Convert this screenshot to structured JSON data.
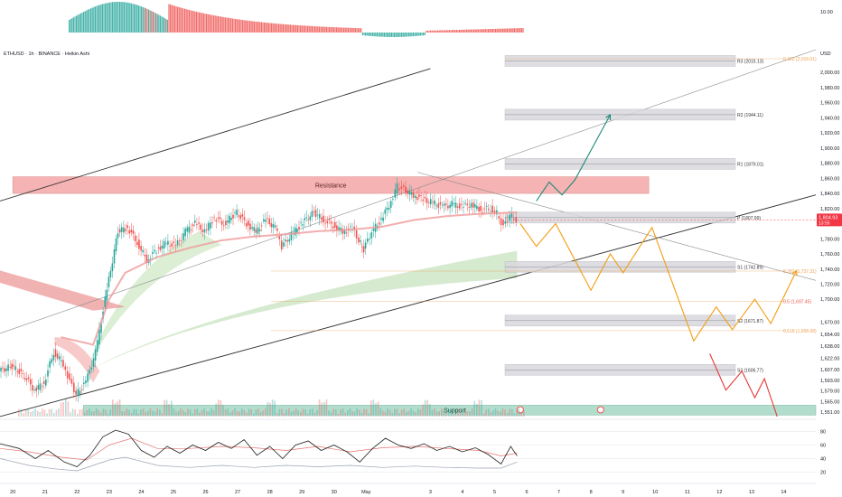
{
  "title": "ETHUSD · 1h · BINANCE · Heikin Ashi",
  "currency": "USD",
  "colors": {
    "up": "#26a69a",
    "down": "#ef5350",
    "fib": "#f0a050",
    "projection_up": "#1e8a7a",
    "projection_mid": "#f39c12",
    "projection_down": "#e53935",
    "pivot_box": "#d9d9dd",
    "resistance": "#f4a6a6",
    "support": "#a5d6c4",
    "price_tag": "#f23645"
  },
  "labels": {
    "resistance": "Resistance",
    "support": "Support"
  },
  "current_price": {
    "value": 1804.93,
    "line1": "1,804.93",
    "line2": "13:55"
  },
  "macd_axis": {
    "label": "10.00",
    "value": 10
  },
  "chart_data": {
    "type": "line",
    "price_axis": {
      "min": 1545,
      "max": 2030,
      "ticks": [
        {
          "label": "2,000.00",
          "value": 2000
        },
        {
          "label": "1,980.00",
          "value": 1980
        },
        {
          "label": "1,960.00",
          "value": 1960
        },
        {
          "label": "1,940.00",
          "value": 1940
        },
        {
          "label": "1,920.00",
          "value": 1920
        },
        {
          "label": "1,900.00",
          "value": 1900
        },
        {
          "label": "1,880.00",
          "value": 1880
        },
        {
          "label": "1,860.00",
          "value": 1860
        },
        {
          "label": "1,840.00",
          "value": 1840
        },
        {
          "label": "1,820.00",
          "value": 1820
        },
        {
          "label": "1,800.00",
          "value": 1800
        },
        {
          "label": "1,780.00",
          "value": 1780
        },
        {
          "label": "1,760.00",
          "value": 1760
        },
        {
          "label": "1,740.00",
          "value": 1740
        },
        {
          "label": "1,720.00",
          "value": 1720
        },
        {
          "label": "1,700.00",
          "value": 1700
        },
        {
          "label": "1,670.00",
          "value": 1670
        },
        {
          "label": "1,654.00",
          "value": 1654
        },
        {
          "label": "1,638.00",
          "value": 1638
        },
        {
          "label": "1,622.00",
          "value": 1622
        },
        {
          "label": "1,607.00",
          "value": 1607
        },
        {
          "label": "1,593.00",
          "value": 1593
        },
        {
          "label": "1,579.00",
          "value": 1579
        },
        {
          "label": "1,565.00",
          "value": 1565
        },
        {
          "label": "1,551.00",
          "value": 1551
        }
      ]
    },
    "x_axis": {
      "min": 19.6,
      "max": 45.0,
      "ticks": [
        {
          "label": "20",
          "value": 20
        },
        {
          "label": "21",
          "value": 21
        },
        {
          "label": "22",
          "value": 22
        },
        {
          "label": "23",
          "value": 23
        },
        {
          "label": "24",
          "value": 24
        },
        {
          "label": "25",
          "value": 25
        },
        {
          "label": "26",
          "value": 26
        },
        {
          "label": "27",
          "value": 27
        },
        {
          "label": "28",
          "value": 28
        },
        {
          "label": "29",
          "value": 29
        },
        {
          "label": "30",
          "value": 30
        },
        {
          "label": "May",
          "value": 31
        },
        {
          "label": "3",
          "value": 33
        },
        {
          "label": "4",
          "value": 34
        },
        {
          "label": "5",
          "value": 35
        },
        {
          "label": "6",
          "value": 36
        },
        {
          "label": "7",
          "value": 37
        },
        {
          "label": "8",
          "value": 38
        },
        {
          "label": "9",
          "value": 39
        },
        {
          "label": "10",
          "value": 40
        },
        {
          "label": "11",
          "value": 41
        },
        {
          "label": "12",
          "value": 42
        },
        {
          "label": "13",
          "value": 43
        },
        {
          "label": "14",
          "value": 44
        }
      ]
    },
    "price_series": [
      {
        "x": 19.6,
        "y": 1605
      },
      {
        "x": 20.0,
        "y": 1612
      },
      {
        "x": 20.4,
        "y": 1598
      },
      {
        "x": 20.7,
        "y": 1580
      },
      {
        "x": 21.0,
        "y": 1590
      },
      {
        "x": 21.3,
        "y": 1630
      },
      {
        "x": 21.6,
        "y": 1615
      },
      {
        "x": 21.8,
        "y": 1592
      },
      {
        "x": 22.0,
        "y": 1575
      },
      {
        "x": 22.3,
        "y": 1590
      },
      {
        "x": 22.6,
        "y": 1630
      },
      {
        "x": 22.9,
        "y": 1700
      },
      {
        "x": 23.3,
        "y": 1790
      },
      {
        "x": 23.6,
        "y": 1795
      },
      {
        "x": 23.9,
        "y": 1775
      },
      {
        "x": 24.2,
        "y": 1752
      },
      {
        "x": 24.5,
        "y": 1765
      },
      {
        "x": 24.8,
        "y": 1775
      },
      {
        "x": 25.1,
        "y": 1770
      },
      {
        "x": 25.4,
        "y": 1790
      },
      {
        "x": 25.7,
        "y": 1800
      },
      {
        "x": 26.0,
        "y": 1790
      },
      {
        "x": 26.3,
        "y": 1808
      },
      {
        "x": 26.6,
        "y": 1800
      },
      {
        "x": 27.0,
        "y": 1815
      },
      {
        "x": 27.3,
        "y": 1800
      },
      {
        "x": 27.6,
        "y": 1790
      },
      {
        "x": 27.9,
        "y": 1805
      },
      {
        "x": 28.2,
        "y": 1795
      },
      {
        "x": 28.4,
        "y": 1770
      },
      {
        "x": 28.7,
        "y": 1785
      },
      {
        "x": 29.0,
        "y": 1800
      },
      {
        "x": 29.4,
        "y": 1815
      },
      {
        "x": 29.7,
        "y": 1805
      },
      {
        "x": 30.0,
        "y": 1798
      },
      {
        "x": 30.3,
        "y": 1790
      },
      {
        "x": 30.6,
        "y": 1793
      },
      {
        "x": 30.8,
        "y": 1778
      },
      {
        "x": 30.95,
        "y": 1766
      },
      {
        "x": 31.2,
        "y": 1790
      },
      {
        "x": 31.5,
        "y": 1805
      },
      {
        "x": 31.8,
        "y": 1830
      },
      {
        "x": 32.0,
        "y": 1850
      },
      {
        "x": 32.2,
        "y": 1845
      },
      {
        "x": 32.5,
        "y": 1838
      },
      {
        "x": 32.8,
        "y": 1832
      },
      {
        "x": 33.1,
        "y": 1828
      },
      {
        "x": 33.4,
        "y": 1822
      },
      {
        "x": 33.7,
        "y": 1826
      },
      {
        "x": 34.0,
        "y": 1822
      },
      {
        "x": 34.3,
        "y": 1826
      },
      {
        "x": 34.6,
        "y": 1818
      },
      {
        "x": 34.9,
        "y": 1820
      },
      {
        "x": 35.1,
        "y": 1814
      },
      {
        "x": 35.3,
        "y": 1796
      },
      {
        "x": 35.5,
        "y": 1812
      },
      {
        "x": 35.7,
        "y": 1805
      }
    ],
    "ema_series": [
      {
        "x": 21.5,
        "y": 1650
      },
      {
        "x": 22.5,
        "y": 1640
      },
      {
        "x": 23.0,
        "y": 1700
      },
      {
        "x": 23.5,
        "y": 1735
      },
      {
        "x": 24.5,
        "y": 1756
      },
      {
        "x": 25.5,
        "y": 1768
      },
      {
        "x": 26.5,
        "y": 1778
      },
      {
        "x": 27.5,
        "y": 1783
      },
      {
        "x": 28.5,
        "y": 1786
      },
      {
        "x": 29.5,
        "y": 1790
      },
      {
        "x": 30.5,
        "y": 1792
      },
      {
        "x": 31.5,
        "y": 1796
      },
      {
        "x": 32.5,
        "y": 1805
      },
      {
        "x": 33.5,
        "y": 1810
      },
      {
        "x": 34.5,
        "y": 1813
      },
      {
        "x": 35.7,
        "y": 1815
      }
    ],
    "pivot_levels": [
      {
        "name": "R3",
        "label": "R3 (2015.13)",
        "value": 2015.13
      },
      {
        "name": "R2",
        "label": "R2 (1944.11)",
        "value": 1944.11
      },
      {
        "name": "R1",
        "label": "R1 (1879.01)",
        "value": 1879.01
      },
      {
        "name": "P",
        "label": "P (1807.99)",
        "value": 1807.99
      },
      {
        "name": "S1",
        "label": "S1 (1742.89)",
        "value": 1742.89
      },
      {
        "name": "S2",
        "label": "S2 (1671.87)",
        "value": 1671.87
      },
      {
        "name": "S3",
        "label": "S3 (1606.77)",
        "value": 1606.77
      }
    ],
    "fib_levels": [
      {
        "label": "0.382 (2,018.01)",
        "value": 2018.01
      },
      {
        "label": "0.382 (1,737.31)",
        "value": 1737.31
      },
      {
        "label": "0.5 (1,697.45)",
        "value": 1697.45
      },
      {
        "label": "0.618 (1,658.58)",
        "value": 1658.58
      }
    ],
    "zones": {
      "resistance": {
        "x0": 20.0,
        "x1": 39.8,
        "y0": 1840,
        "y1": 1862
      },
      "support": {
        "x0": 22.2,
        "x1": 45.0,
        "y0": 1547,
        "y1": 1560
      }
    },
    "projections": {
      "bullish": [
        {
          "x": 36.3,
          "y": 1830
        },
        {
          "x": 36.7,
          "y": 1855
        },
        {
          "x": 37.1,
          "y": 1838
        },
        {
          "x": 37.5,
          "y": 1858
        },
        {
          "x": 38.6,
          "y": 1944
        }
      ],
      "base": [
        {
          "x": 35.8,
          "y": 1800
        },
        {
          "x": 36.3,
          "y": 1770
        },
        {
          "x": 36.9,
          "y": 1800
        },
        {
          "x": 38.0,
          "y": 1712
        },
        {
          "x": 38.6,
          "y": 1760
        },
        {
          "x": 39.0,
          "y": 1735
        },
        {
          "x": 39.9,
          "y": 1795
        },
        {
          "x": 41.2,
          "y": 1645
        },
        {
          "x": 41.9,
          "y": 1690
        },
        {
          "x": 42.4,
          "y": 1660
        },
        {
          "x": 43.1,
          "y": 1700
        },
        {
          "x": 43.6,
          "y": 1668
        },
        {
          "x": 44.4,
          "y": 1738
        }
      ],
      "bearish": [
        {
          "x": 41.7,
          "y": 1628
        },
        {
          "x": 42.2,
          "y": 1580
        },
        {
          "x": 42.7,
          "y": 1605
        },
        {
          "x": 43.1,
          "y": 1570
        },
        {
          "x": 43.4,
          "y": 1595
        },
        {
          "x": 43.8,
          "y": 1545
        }
      ]
    },
    "trendlines": [
      {
        "x0": 19.6,
        "y0": 1830,
        "x1": 33.0,
        "y1": 2005
      },
      {
        "x0": 19.6,
        "y0": 1545,
        "x1": 45.0,
        "y1": 1838
      },
      {
        "x0": 19.6,
        "y0": 1655,
        "x1": 45.0,
        "y1": 2030
      },
      {
        "x0": 32.6,
        "y0": 1868,
        "x1": 45.0,
        "y1": 1725
      }
    ],
    "rsi": {
      "ticks": [
        {
          "label": "80",
          "value": 80
        },
        {
          "label": "60",
          "value": 60
        },
        {
          "label": "40",
          "value": 40
        },
        {
          "label": "20",
          "value": 20
        }
      ],
      "black": [
        {
          "x": 19.6,
          "y": 62
        },
        {
          "x": 20.2,
          "y": 55
        },
        {
          "x": 20.7,
          "y": 40
        },
        {
          "x": 21.1,
          "y": 52
        },
        {
          "x": 21.6,
          "y": 35
        },
        {
          "x": 22.0,
          "y": 28
        },
        {
          "x": 22.4,
          "y": 45
        },
        {
          "x": 22.8,
          "y": 72
        },
        {
          "x": 23.2,
          "y": 82
        },
        {
          "x": 23.6,
          "y": 76
        },
        {
          "x": 24.0,
          "y": 52
        },
        {
          "x": 24.4,
          "y": 42
        },
        {
          "x": 24.8,
          "y": 58
        },
        {
          "x": 25.2,
          "y": 48
        },
        {
          "x": 25.6,
          "y": 60
        },
        {
          "x": 26.0,
          "y": 52
        },
        {
          "x": 26.4,
          "y": 64
        },
        {
          "x": 26.8,
          "y": 55
        },
        {
          "x": 27.2,
          "y": 68
        },
        {
          "x": 27.6,
          "y": 45
        },
        {
          "x": 28.0,
          "y": 58
        },
        {
          "x": 28.4,
          "y": 40
        },
        {
          "x": 28.8,
          "y": 60
        },
        {
          "x": 29.2,
          "y": 66
        },
        {
          "x": 29.6,
          "y": 52
        },
        {
          "x": 30.0,
          "y": 60
        },
        {
          "x": 30.4,
          "y": 50
        },
        {
          "x": 30.8,
          "y": 35
        },
        {
          "x": 31.2,
          "y": 55
        },
        {
          "x": 31.6,
          "y": 70
        },
        {
          "x": 32.0,
          "y": 60
        },
        {
          "x": 32.4,
          "y": 55
        },
        {
          "x": 32.8,
          "y": 62
        },
        {
          "x": 33.2,
          "y": 52
        },
        {
          "x": 33.6,
          "y": 58
        },
        {
          "x": 34.0,
          "y": 50
        },
        {
          "x": 34.4,
          "y": 56
        },
        {
          "x": 34.8,
          "y": 46
        },
        {
          "x": 35.2,
          "y": 32
        },
        {
          "x": 35.5,
          "y": 58
        },
        {
          "x": 35.7,
          "y": 44
        }
      ],
      "red": [
        {
          "x": 19.6,
          "y": 55
        },
        {
          "x": 20.5,
          "y": 50
        },
        {
          "x": 21.5,
          "y": 42
        },
        {
          "x": 22.3,
          "y": 38
        },
        {
          "x": 23.0,
          "y": 60
        },
        {
          "x": 23.7,
          "y": 70
        },
        {
          "x": 24.5,
          "y": 55
        },
        {
          "x": 25.5,
          "y": 55
        },
        {
          "x": 26.5,
          "y": 58
        },
        {
          "x": 27.5,
          "y": 56
        },
        {
          "x": 28.5,
          "y": 52
        },
        {
          "x": 29.5,
          "y": 58
        },
        {
          "x": 30.5,
          "y": 50
        },
        {
          "x": 31.5,
          "y": 56
        },
        {
          "x": 32.5,
          "y": 58
        },
        {
          "x": 33.5,
          "y": 55
        },
        {
          "x": 34.5,
          "y": 52
        },
        {
          "x": 35.2,
          "y": 44
        },
        {
          "x": 35.7,
          "y": 48
        }
      ],
      "gray": [
        {
          "x": 19.6,
          "y": 40
        },
        {
          "x": 20.5,
          "y": 30
        },
        {
          "x": 21.3,
          "y": 25
        },
        {
          "x": 22.0,
          "y": 22
        },
        {
          "x": 22.5,
          "y": 30
        },
        {
          "x": 23.0,
          "y": 38
        },
        {
          "x": 23.5,
          "y": 42
        },
        {
          "x": 24.5,
          "y": 30
        },
        {
          "x": 25.5,
          "y": 27
        },
        {
          "x": 26.5,
          "y": 30
        },
        {
          "x": 27.5,
          "y": 27
        },
        {
          "x": 28.5,
          "y": 30
        },
        {
          "x": 29.5,
          "y": 28
        },
        {
          "x": 30.5,
          "y": 30
        },
        {
          "x": 31.5,
          "y": 27
        },
        {
          "x": 32.5,
          "y": 29
        },
        {
          "x": 33.5,
          "y": 27
        },
        {
          "x": 34.5,
          "y": 26
        },
        {
          "x": 35.2,
          "y": 26
        },
        {
          "x": 35.7,
          "y": 35
        }
      ]
    }
  }
}
